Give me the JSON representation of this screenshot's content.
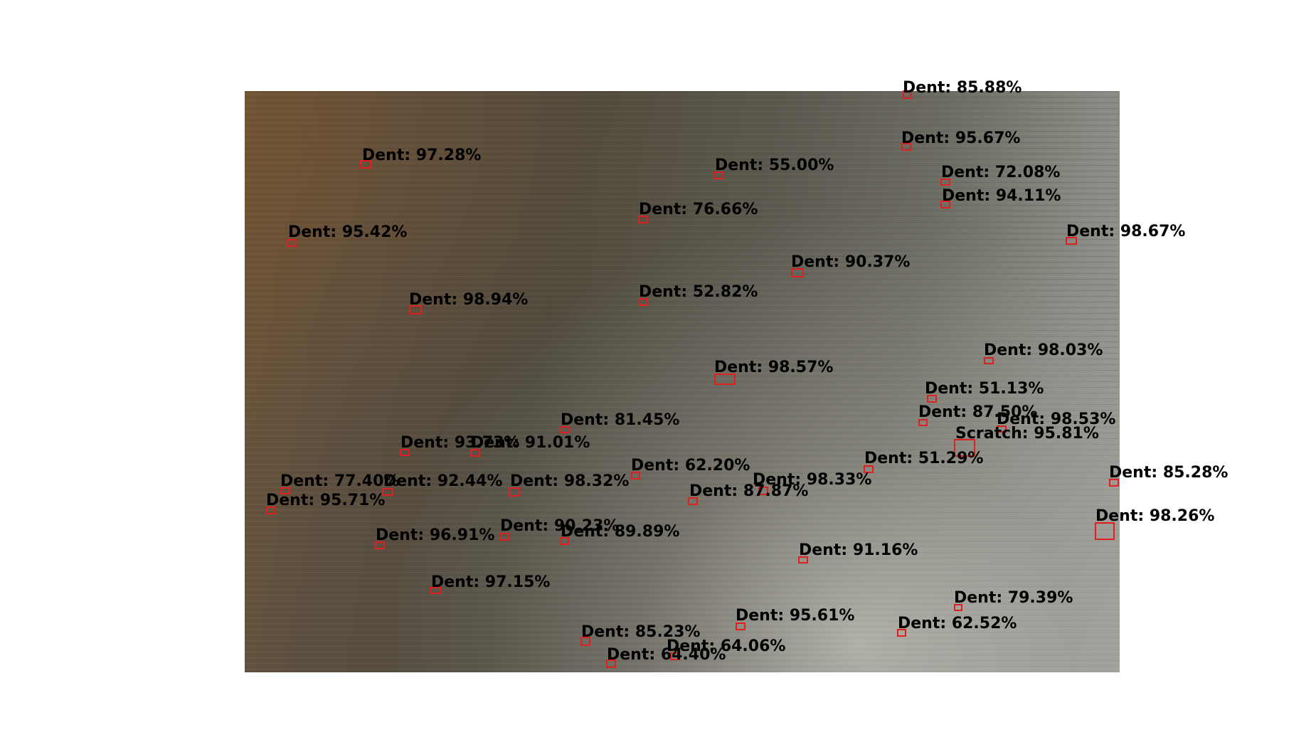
{
  "detections": [
    {
      "label": "Dent: 85.88%",
      "box_color": "#e02020"
    },
    {
      "label": "Dent: 95.67%",
      "box_color": "#e02020"
    },
    {
      "label": "Dent: 97.28%",
      "box_color": "#e02020"
    },
    {
      "label": "Dent: 55.00%",
      "box_color": "#e02020"
    },
    {
      "label": "Dent: 72.08%",
      "box_color": "#e02020"
    },
    {
      "label": "Dent: 94.11%",
      "box_color": "#e02020"
    },
    {
      "label": "Dent: 76.66%",
      "box_color": "#e02020"
    },
    {
      "label": "Dent: 95.42%",
      "box_color": "#e02020"
    },
    {
      "label": "Dent: 98.67%",
      "box_color": "#e02020"
    },
    {
      "label": "Dent: 90.37%",
      "box_color": "#e02020"
    },
    {
      "label": "Dent: 98.94%",
      "box_color": "#e02020"
    },
    {
      "label": "Dent: 52.82%",
      "box_color": "#e02020"
    },
    {
      "label": "Dent: 98.03%",
      "box_color": "#e02020"
    },
    {
      "label": "Dent: 98.57%",
      "box_color": "#e02020"
    },
    {
      "label": "Dent: 51.13%",
      "box_color": "#e02020"
    },
    {
      "label": "Dent: 87.50%",
      "box_color": "#e02020"
    },
    {
      "label": "Dent: 98.53%",
      "box_color": "#e02020"
    },
    {
      "label": "Dent: 81.45%",
      "box_color": "#e02020"
    },
    {
      "label": "Scratch: 95.81%",
      "box_color": "#e02020"
    },
    {
      "label": "Dent: 93.73%",
      "box_color": "#e02020"
    },
    {
      "label": "Dent: 91.01%",
      "box_color": "#e02020"
    },
    {
      "label": "Dent: 51.29%",
      "box_color": "#e02020"
    },
    {
      "label": "Dent: 62.20%",
      "box_color": "#e02020"
    },
    {
      "label": "Dent: 85.28%",
      "box_color": "#e02020"
    },
    {
      "label": "Dent: 77.40%",
      "box_color": "#e02020"
    },
    {
      "label": "Dent: 92.44%",
      "box_color": "#e02020"
    },
    {
      "label": "Dent: 98.32%",
      "box_color": "#e02020"
    },
    {
      "label": "Dent: 98.33%",
      "box_color": "#e02020"
    },
    {
      "label": "Dent: 87.87%",
      "box_color": "#e02020"
    },
    {
      "label": "Dent: 95.71%",
      "box_color": "#e02020"
    },
    {
      "label": "Dent: 98.26%",
      "box_color": "#e02020"
    },
    {
      "label": "Dent: 90.23%",
      "box_color": "#e02020"
    },
    {
      "label": "Dent: 89.89%",
      "box_color": "#e02020"
    },
    {
      "label": "Dent: 96.91%",
      "box_color": "#e02020"
    },
    {
      "label": "Dent: 91.16%",
      "box_color": "#e02020"
    },
    {
      "label": "Dent: 97.15%",
      "box_color": "#e02020"
    },
    {
      "label": "Dent: 79.39%",
      "box_color": "#e02020"
    },
    {
      "label": "Dent: 95.61%",
      "box_color": "#e02020"
    },
    {
      "label": "Dent: 62.52%",
      "box_color": "#e02020"
    },
    {
      "label": "Dent: 85.23%",
      "box_color": "#e02020"
    },
    {
      "label": "Dent: 64.06%",
      "box_color": "#e02020"
    },
    {
      "label": "Dent: 64.40%",
      "box_color": "#e02020"
    }
  ]
}
